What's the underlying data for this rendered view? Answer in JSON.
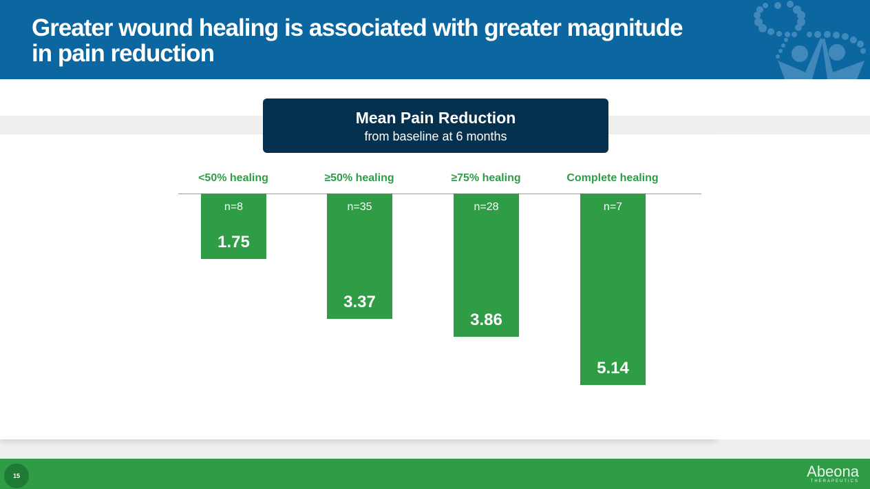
{
  "title": "Greater wound healing is associated with greater magnitude in pain reduction",
  "page_number": "15",
  "brand": {
    "name": "Abeona",
    "sub": "THERAPEUTICS"
  },
  "colors": {
    "header": "#0c67a0",
    "bar": "#2e9d46",
    "box": "#05304e"
  },
  "chart_data": {
    "type": "bar",
    "title": "Mean Pain Reduction",
    "subtitle": "from baseline at 6 months",
    "categories": [
      "<50% healing",
      "≥50% healing",
      "≥75% healing",
      "Complete healing"
    ],
    "n_labels": [
      "n=8",
      "n=35",
      "n=28",
      "n=7"
    ],
    "values": [
      1.75,
      3.37,
      3.86,
      5.14
    ],
    "value_labels": [
      "1.75",
      "3.37",
      "3.86",
      "5.14"
    ],
    "orientation": "downward",
    "ylim": [
      0,
      6.5
    ]
  }
}
